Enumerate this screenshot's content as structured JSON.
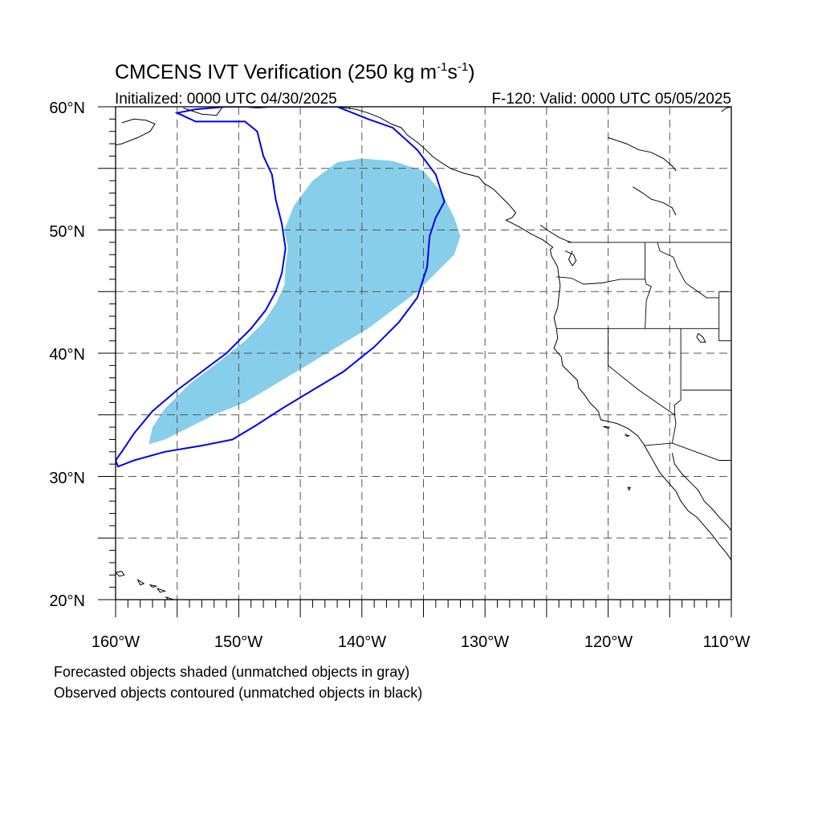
{
  "title": {
    "prefix": "CMCENS IVT Verification (250 kg m",
    "exp1": "-1",
    "mid": "s",
    "exp2": "-1",
    "suffix": ")"
  },
  "initialized": "Initialized: 0000 UTC 04/30/2025",
  "valid": "F-120: Valid: 0000 UTC 05/05/2025",
  "lat_labels": [
    "60°N",
    "50°N",
    "40°N",
    "30°N",
    "20°N"
  ],
  "lon_labels": [
    "160°W",
    "150°W",
    "140°W",
    "130°W",
    "120°W",
    "110°W"
  ],
  "notes": [
    "Forecasted objects shaded (unmatched objects in gray)",
    "Observed objects contoured (unmatched objects in black)"
  ],
  "colors": {
    "forecast_fill": "#87ceeb",
    "observed_contour": "#0000ee",
    "grid": "#555555",
    "coast": "#000000"
  },
  "map": {
    "lon_range": [
      -160,
      -110
    ],
    "lat_range": [
      20,
      60
    ],
    "grid_lon_step": 5,
    "grid_lat_step": 5
  },
  "forecast_object": [
    [
      -157.3,
      32.6
    ],
    [
      -157.0,
      34.0
    ],
    [
      -156.0,
      35.5
    ],
    [
      -154.0,
      37.5
    ],
    [
      -152.0,
      39.0
    ],
    [
      -149.5,
      41.0
    ],
    [
      -148.0,
      42.5
    ],
    [
      -147.0,
      44.0
    ],
    [
      -146.3,
      45.5
    ],
    [
      -146.2,
      47.0
    ],
    [
      -146.0,
      48.5
    ],
    [
      -146.3,
      50.0
    ],
    [
      -145.5,
      52.0
    ],
    [
      -144.0,
      54.0
    ],
    [
      -142.0,
      55.5
    ],
    [
      -140.0,
      55.8
    ],
    [
      -137.5,
      55.6
    ],
    [
      -135.0,
      54.8
    ],
    [
      -133.5,
      53.0
    ],
    [
      -132.5,
      51.0
    ],
    [
      -132.0,
      49.5
    ],
    [
      -132.5,
      48.0
    ],
    [
      -134.0,
      46.5
    ],
    [
      -135.5,
      45.0
    ],
    [
      -137.5,
      43.5
    ],
    [
      -139.5,
      42.0
    ],
    [
      -142.0,
      40.5
    ],
    [
      -144.5,
      39.0
    ],
    [
      -147.0,
      37.5
    ],
    [
      -149.5,
      36.0
    ],
    [
      -152.0,
      35.0
    ],
    [
      -154.0,
      34.0
    ],
    [
      -156.0,
      33.0
    ]
  ],
  "observed_object": [
    [
      -160.0,
      31.3
    ],
    [
      -159.8,
      30.8
    ],
    [
      -158.5,
      31.3
    ],
    [
      -156.0,
      32.0
    ],
    [
      -153.0,
      32.5
    ],
    [
      -150.5,
      33.0
    ],
    [
      -148.5,
      34.2
    ],
    [
      -146.5,
      35.5
    ],
    [
      -144.0,
      37.0
    ],
    [
      -141.5,
      38.5
    ],
    [
      -139.0,
      40.5
    ],
    [
      -137.0,
      42.5
    ],
    [
      -135.5,
      44.5
    ],
    [
      -134.7,
      47.0
    ],
    [
      -134.5,
      49.5
    ],
    [
      -134.0,
      51.0
    ],
    [
      -133.3,
      52.3
    ],
    [
      -134.0,
      54.5
    ],
    [
      -135.5,
      56.5
    ],
    [
      -137.5,
      58.3
    ],
    [
      -139.5,
      59.0
    ],
    [
      -142.0,
      60.0
    ],
    [
      -151.0,
      60.0
    ],
    [
      -153.5,
      59.8
    ],
    [
      -155.0,
      59.5
    ],
    [
      -153.5,
      58.8
    ],
    [
      -149.5,
      58.8
    ],
    [
      -148.5,
      58.0
    ],
    [
      -148.0,
      56.0
    ],
    [
      -147.3,
      54.5
    ],
    [
      -147.0,
      52.5
    ],
    [
      -146.5,
      50.5
    ],
    [
      -146.2,
      48.5
    ],
    [
      -146.5,
      46.5
    ],
    [
      -147.0,
      45.0
    ],
    [
      -147.8,
      43.5
    ],
    [
      -149.0,
      42.0
    ],
    [
      -151.0,
      40.0
    ],
    [
      -153.0,
      38.5
    ],
    [
      -155.0,
      37.0
    ],
    [
      -157.0,
      35.3
    ],
    [
      -158.5,
      33.5
    ],
    [
      -159.5,
      32.0
    ]
  ],
  "coastlines": [
    [
      [
        -159.5,
        58.7
      ],
      [
        -158.5,
        59.0
      ],
      [
        -157.5,
        58.9
      ],
      [
        -156.8,
        58.6
      ],
      [
        -157.2,
        58.0
      ],
      [
        -158.2,
        57.5
      ],
      [
        -159.5,
        57.0
      ],
      [
        -160.0,
        56.9
      ]
    ],
    [
      [
        -154.5,
        59.9
      ],
      [
        -153.0,
        59.4
      ],
      [
        -151.8,
        59.3
      ],
      [
        -151.3,
        60.0
      ]
    ],
    [
      [
        -149.8,
        60.0
      ],
      [
        -148.5,
        59.9
      ],
      [
        -147.0,
        60.0
      ]
    ],
    [
      [
        -146.0,
        60.0
      ],
      [
        -144.0,
        60.0
      ],
      [
        -142.0,
        60.0
      ],
      [
        -140.5,
        59.8
      ],
      [
        -139.5,
        59.5
      ],
      [
        -138.5,
        59.1
      ],
      [
        -137.6,
        58.6
      ],
      [
        -136.8,
        58.3
      ],
      [
        -136.3,
        57.7
      ],
      [
        -135.6,
        57.2
      ],
      [
        -134.9,
        56.6
      ],
      [
        -134.3,
        56.0
      ],
      [
        -133.6,
        55.5
      ],
      [
        -132.8,
        55.0
      ],
      [
        -131.7,
        54.6
      ],
      [
        -130.5,
        54.3
      ],
      [
        -130.1,
        53.8
      ],
      [
        -129.3,
        53.3
      ],
      [
        -128.6,
        52.6
      ],
      [
        -128.0,
        52.0
      ],
      [
        -127.5,
        51.4
      ],
      [
        -127.8,
        51.0
      ],
      [
        -128.3,
        50.8
      ],
      [
        -127.3,
        50.3
      ],
      [
        -126.3,
        49.7
      ],
      [
        -125.3,
        49.2
      ],
      [
        -124.5,
        48.6
      ],
      [
        -124.7,
        48.4
      ],
      [
        -124.6,
        47.9
      ],
      [
        -124.1,
        47.0
      ],
      [
        -124.0,
        46.2
      ],
      [
        -123.9,
        45.5
      ],
      [
        -124.0,
        44.6
      ],
      [
        -124.1,
        43.7
      ],
      [
        -124.4,
        42.9
      ],
      [
        -124.2,
        42.0
      ],
      [
        -124.1,
        41.2
      ],
      [
        -124.4,
        40.4
      ],
      [
        -123.8,
        39.7
      ],
      [
        -123.7,
        39.0
      ],
      [
        -123.0,
        38.3
      ],
      [
        -122.5,
        37.8
      ],
      [
        -122.4,
        37.2
      ],
      [
        -121.9,
        36.6
      ],
      [
        -121.5,
        36.0
      ],
      [
        -120.8,
        35.3
      ],
      [
        -120.6,
        34.6
      ],
      [
        -119.3,
        34.3
      ],
      [
        -118.4,
        33.9
      ],
      [
        -117.6,
        33.3
      ],
      [
        -117.1,
        32.6
      ],
      [
        -116.6,
        31.7
      ],
      [
        -116.2,
        31.0
      ],
      [
        -115.8,
        30.3
      ],
      [
        -115.2,
        29.6
      ],
      [
        -114.5,
        28.8
      ],
      [
        -114.1,
        28.0
      ],
      [
        -113.5,
        27.2
      ],
      [
        -112.8,
        26.7
      ],
      [
        -112.2,
        26.0
      ],
      [
        -111.6,
        25.3
      ],
      [
        -111.0,
        24.5
      ],
      [
        -110.4,
        23.8
      ],
      [
        -110.0,
        23.2
      ]
    ],
    [
      [
        -114.8,
        31.9
      ],
      [
        -114.6,
        31.0
      ],
      [
        -114.0,
        30.2
      ],
      [
        -113.3,
        29.5
      ],
      [
        -112.7,
        28.9
      ],
      [
        -112.2,
        28.0
      ],
      [
        -111.5,
        27.3
      ],
      [
        -110.9,
        26.6
      ],
      [
        -110.3,
        26.0
      ],
      [
        -110.0,
        25.6
      ]
    ],
    [
      [
        -123.5,
        48.3
      ],
      [
        -122.8,
        48.0
      ],
      [
        -122.6,
        47.5
      ],
      [
        -122.9,
        47.1
      ],
      [
        -123.2,
        47.6
      ],
      [
        -122.9,
        48.3
      ]
    ],
    [
      [
        -125.5,
        50.4
      ],
      [
        -124.8,
        49.9
      ],
      [
        -124.0,
        49.4
      ],
      [
        -123.3,
        49.1
      ],
      [
        -123.0,
        49.0
      ]
    ],
    [
      [
        -112.7,
        41.6
      ],
      [
        -112.3,
        41.3
      ],
      [
        -112.1,
        40.9
      ],
      [
        -112.5,
        40.9
      ],
      [
        -112.8,
        41.3
      ],
      [
        -112.7,
        41.6
      ]
    ],
    [
      [
        -110.8,
        59.6
      ],
      [
        -110.4,
        59.9
      ],
      [
        -110.0,
        60.0
      ]
    ],
    [
      [
        -120.0,
        57.5
      ],
      [
        -118.5,
        57.0
      ],
      [
        -117.5,
        56.5
      ],
      [
        -116.5,
        56.3
      ],
      [
        -115.5,
        55.8
      ],
      [
        -114.8,
        55.2
      ],
      [
        -114.5,
        54.8
      ]
    ],
    [
      [
        -118.0,
        53.5
      ],
      [
        -117.2,
        53.0
      ],
      [
        -116.5,
        52.5
      ],
      [
        -115.5,
        52.2
      ],
      [
        -114.8,
        51.8
      ],
      [
        -114.5,
        51.2
      ]
    ]
  ],
  "islands": [
    [
      [
        -160.0,
        22.2
      ],
      [
        -159.5,
        22.3
      ],
      [
        -159.3,
        22.0
      ],
      [
        -159.7,
        21.9
      ],
      [
        -160.0,
        22.2
      ]
    ],
    [
      [
        -158.2,
        21.6
      ],
      [
        -157.7,
        21.3
      ],
      [
        -158.0,
        21.2
      ],
      [
        -158.2,
        21.6
      ]
    ],
    [
      [
        -157.2,
        21.2
      ],
      [
        -156.7,
        21.1
      ],
      [
        -157.0,
        21.0
      ],
      [
        -157.2,
        21.2
      ]
    ],
    [
      [
        -156.6,
        20.9
      ],
      [
        -156.0,
        20.7
      ],
      [
        -156.4,
        20.6
      ],
      [
        -156.6,
        20.9
      ]
    ],
    [
      [
        -155.9,
        20.2
      ],
      [
        -155.0,
        19.9
      ],
      [
        -155.5,
        19.7
      ],
      [
        -155.9,
        20.2
      ]
    ],
    [
      [
        -120.4,
        34.05
      ],
      [
        -119.9,
        34.0
      ],
      [
        -120.0,
        33.9
      ],
      [
        -120.4,
        34.05
      ]
    ],
    [
      [
        -118.6,
        33.4
      ],
      [
        -118.3,
        33.3
      ],
      [
        -118.5,
        33.25
      ],
      [
        -118.6,
        33.4
      ]
    ],
    [
      [
        -118.2,
        29.1
      ],
      [
        -118.3,
        28.9
      ],
      [
        -118.4,
        29.1
      ],
      [
        -118.2,
        29.1
      ]
    ]
  ],
  "borders": [
    [
      [
        -123.3,
        49.0
      ],
      [
        -110.0,
        49.0
      ]
    ],
    [
      [
        -141.0,
        60.0
      ],
      [
        -141.0,
        59.8
      ]
    ],
    [
      [
        -117.0,
        49.0
      ],
      [
        -117.0,
        46.0
      ],
      [
        -116.9,
        45.6
      ],
      [
        -116.5,
        45.4
      ],
      [
        -116.9,
        44.3
      ],
      [
        -117.0,
        42.0
      ]
    ],
    [
      [
        -124.2,
        46.2
      ],
      [
        -123.0,
        46.1
      ],
      [
        -122.0,
        45.6
      ],
      [
        -120.5,
        45.7
      ],
      [
        -119.0,
        46.0
      ],
      [
        -117.0,
        46.0
      ]
    ],
    [
      [
        -124.2,
        42.0
      ],
      [
        -111.0,
        42.0
      ]
    ],
    [
      [
        -120.0,
        42.0
      ],
      [
        -120.0,
        39.0
      ],
      [
        -117.5,
        37.0
      ],
      [
        -114.6,
        35.0
      ]
    ],
    [
      [
        -114.1,
        42.0
      ],
      [
        -114.1,
        36.2
      ],
      [
        -114.6,
        35.8
      ],
      [
        -114.6,
        35.0
      ],
      [
        -114.5,
        34.3
      ],
      [
        -114.8,
        32.7
      ]
    ],
    [
      [
        -117.1,
        32.5
      ],
      [
        -114.8,
        32.7
      ],
      [
        -111.0,
        31.3
      ],
      [
        -110.0,
        31.3
      ]
    ],
    [
      [
        -116.0,
        49.0
      ],
      [
        -115.8,
        48.3
      ],
      [
        -114.7,
        47.8
      ],
      [
        -114.4,
        47.0
      ],
      [
        -113.7,
        45.7
      ],
      [
        -112.0,
        44.5
      ],
      [
        -111.0,
        44.5
      ]
    ],
    [
      [
        -111.0,
        45.0
      ],
      [
        -110.0,
        45.0
      ]
    ],
    [
      [
        -111.0,
        45.0
      ],
      [
        -111.0,
        41.0
      ],
      [
        -110.0,
        41.0
      ]
    ],
    [
      [
        -114.0,
        37.0
      ],
      [
        -110.0,
        37.0
      ]
    ]
  ]
}
